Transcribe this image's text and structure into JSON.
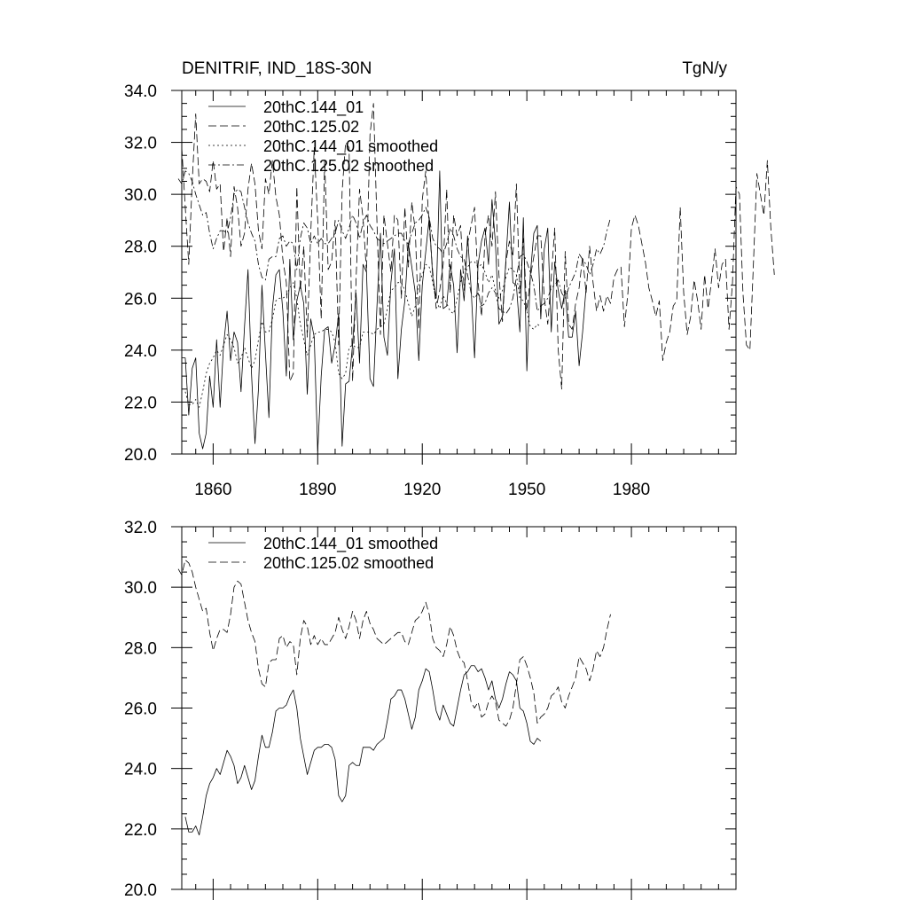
{
  "chart_data": [
    {
      "type": "line",
      "title": "DENITRIF, IND_18S-30N",
      "units": "TgN/y",
      "xlim": [
        1851,
        2010
      ],
      "ylim": [
        20.0,
        34.0
      ],
      "xticks": [
        1860,
        1890,
        1920,
        1950,
        1980
      ],
      "yticks": [
        "20.0",
        "22.0",
        "24.0",
        "26.0",
        "28.0",
        "30.0",
        "32.0",
        "34.0"
      ],
      "legend": "top-left",
      "series": [
        {
          "name": "20thC.144_01",
          "dash": "solid",
          "x_start": 1851,
          "values": [
            23.7,
            23.7,
            21.5,
            23.3,
            23.7,
            20.8,
            20.2,
            20.8,
            23.0,
            21.8,
            24.4,
            21.8,
            24.2,
            25.5,
            23.6,
            24.7,
            24.3,
            22.4,
            24.9,
            27.1,
            23.1,
            20.4,
            22.5,
            26.5,
            23.9,
            21.4,
            25.6,
            26.9,
            27.1,
            25.5,
            23.0,
            27.5,
            24.4,
            25.9,
            26.5,
            25.8,
            22.3,
            25.2,
            24.5,
            20.1,
            23.0,
            24.8,
            24.9,
            23.5,
            24.2,
            25.4,
            20.3,
            22.7,
            22.8,
            24.2,
            26.2,
            23.5,
            27.3,
            27.0,
            22.9,
            22.6,
            25.7,
            28.5,
            24.5,
            23.8,
            26.6,
            27.9,
            22.9,
            24.8,
            25.9,
            28.1,
            27.2,
            26.2,
            23.6,
            26.5,
            27.8,
            29.1,
            26.8,
            26.0,
            30.9,
            25.6,
            25.7,
            27.3,
            26.5,
            23.9,
            27.1,
            25.9,
            28.4,
            26.4,
            23.7,
            27.3,
            28.2,
            28.7,
            27.3,
            29.8,
            28.1,
            25.0,
            25.3,
            27.5,
            29.7,
            26.6,
            26.5,
            24.7,
            29.1,
            23.2,
            26.9,
            28.5,
            28.8,
            25.2,
            27.9,
            28.7,
            24.7,
            27.4,
            26.3,
            25.6,
            26.3,
            24.5,
            24.5,
            25.5,
            23.4,
            24.7,
            26.4
          ],
          "stroke": "#000000"
        },
        {
          "name": "20thC.125.02",
          "dash": "long-dash",
          "x_start": 1851,
          "values": [
            31.8,
            29.5,
            27.3,
            30.5,
            33.1,
            30.4,
            30.6,
            30.5,
            30.1,
            31.3,
            30.2,
            30.4,
            27.8,
            29.1,
            27.6,
            30.3,
            29.5,
            28.0,
            28.5,
            30.2,
            31.2,
            30.4,
            28.6,
            27.9,
            30.6,
            30.0,
            31.3,
            29.9,
            29.2,
            27.5,
            26.6,
            22.8,
            23.1,
            30.3,
            26.3,
            28.0,
            24.5,
            28.5,
            31.8,
            29.0,
            25.2,
            31.3,
            27.1,
            27.4,
            29.0,
            24.2,
            30.1,
            32.0,
            31.8,
            22.8,
            26.7,
            30.2,
            29.1,
            27.0,
            32.3,
            33.5,
            28.9,
            24.6,
            29.2,
            28.1,
            27.0,
            29.2,
            29.0,
            26.0,
            29.5,
            27.2,
            29.7,
            28.6,
            24.8,
            29.8,
            30.9,
            28.8,
            27.0,
            25.6,
            26.3,
            27.3,
            30.2,
            26.2,
            29.2,
            28.4,
            28.8,
            26.3,
            28.1,
            28.8,
            29.5,
            26.6,
            25.3,
            28.4,
            29.2,
            28.0,
            30.1,
            26.9,
            25.1,
            27.4,
            28.2,
            27.6,
            30.4,
            26.2,
            28.3,
            25.5,
            26.8,
            27.6,
            28.4,
            28.4,
            26.0,
            25.0,
            26.8,
            28.7,
            24.0,
            22.5,
            27.8,
            25.0,
            24.8,
            25.8,
            26.4,
            27.6,
            26.2,
            28.0,
            26.6,
            25.5,
            26.1,
            25.5,
            26.1,
            25.8,
            26.8,
            27.1,
            27.2,
            24.9,
            26.2,
            28.7,
            29.2,
            28.8,
            28.1,
            27.4,
            26.4,
            25.9,
            25.3,
            25.9,
            23.6,
            24.3,
            24.7,
            25.7,
            25.9,
            29.5,
            26.2,
            24.6,
            25.3,
            26.7,
            25.9,
            24.8,
            26.9,
            25.6,
            26.7,
            27.9,
            26.4,
            27.3,
            27.5,
            24.8,
            26.6,
            30.3,
            30.0,
            26.2,
            24.2,
            24.0,
            27.3,
            30.8,
            30.0,
            29.2,
            31.3,
            28.7,
            26.9
          ]
        }
      ]
    },
    {
      "type": "line",
      "xlim": [
        1851,
        2010
      ],
      "ylim": [
        20.0,
        32.0
      ],
      "yticks": [
        "20.0",
        "22.0",
        "24.0",
        "26.0",
        "28.0",
        "30.0",
        "32.0"
      ],
      "legend": "top-left",
      "series": [
        {
          "name": "20thC.144_01 smoothed",
          "dash": "solid",
          "x_start": 1852,
          "values": [
            22.4,
            21.9,
            21.9,
            22.1,
            21.8,
            22.4,
            23.1,
            23.5,
            23.7,
            24.0,
            23.8,
            24.2,
            24.6,
            24.4,
            24.1,
            23.5,
            23.7,
            24.1,
            23.7,
            23.3,
            23.6,
            24.4,
            25.1,
            24.7,
            24.7,
            25.2,
            25.9,
            26.0,
            26.0,
            26.1,
            26.4,
            26.6,
            26.0,
            25.0,
            24.4,
            23.8,
            24.2,
            24.6,
            24.7,
            24.7,
            24.8,
            24.8,
            24.7,
            24.3,
            23.1,
            22.9,
            23.1,
            24.1,
            24.2,
            24.1,
            24.1,
            24.7,
            24.7,
            24.7,
            24.6,
            24.8,
            24.9,
            25.0,
            25.6,
            26.3,
            26.4,
            26.6,
            26.6,
            26.3,
            25.8,
            25.3,
            25.7,
            26.6,
            26.9,
            27.3,
            27.2,
            26.6,
            25.9,
            25.6,
            26.1,
            25.8,
            25.5,
            25.4,
            26.0,
            26.6,
            27.1,
            27.2,
            27.4,
            27.4,
            27.2,
            27.3,
            27.0,
            26.6,
            26.9,
            26.3,
            26.0,
            26.3,
            26.8,
            27.2,
            27.1,
            26.9,
            26.0,
            25.9,
            25.5,
            24.9,
            24.8,
            25.0,
            24.9
          ],
          "stroke": "#000000"
        },
        {
          "name": "20thC.125.02 smoothed",
          "dash": "long-dash",
          "x_start": 1850,
          "values": [
            30.6,
            30.4,
            30.9,
            30.8,
            30.5,
            30.0,
            29.6,
            29.2,
            29.3,
            28.5,
            27.9,
            28.3,
            28.6,
            28.6,
            28.5,
            29.1,
            30.0,
            30.2,
            30.1,
            29.5,
            28.9,
            28.5,
            28.2,
            27.3,
            26.8,
            26.7,
            27.5,
            27.6,
            27.6,
            28.3,
            28.4,
            28.0,
            28.2,
            28.1,
            27.1,
            28.3,
            28.9,
            28.7,
            28.1,
            28.4,
            28.1,
            28.3,
            28.1,
            28.1,
            28.3,
            28.5,
            29.0,
            28.6,
            28.3,
            28.7,
            29.2,
            28.9,
            28.3,
            28.9,
            29.2,
            28.8,
            28.6,
            28.3,
            28.2,
            28.1,
            28.2,
            28.3,
            28.4,
            28.5,
            28.5,
            28.2,
            28.1,
            28.5,
            28.9,
            29.0,
            29.2,
            29.5,
            29.1,
            28.3,
            28.0,
            27.9,
            27.7,
            28.1,
            28.7,
            28.4,
            27.9,
            27.6,
            27.5,
            26.9,
            26.2,
            26.0,
            26.2,
            25.7,
            25.8,
            26.2,
            26.4,
            26.2,
            25.6,
            25.5,
            25.4,
            25.6,
            26.0,
            26.8,
            27.6,
            27.7,
            27.4,
            27.0,
            26.5,
            25.5,
            25.7,
            25.8,
            26.0,
            26.4,
            26.5,
            26.7,
            26.2,
            26.0,
            26.4,
            26.7,
            27.0,
            27.7,
            27.5,
            27.3,
            26.9,
            27.3,
            27.9,
            27.7,
            28.0,
            28.6,
            29.1
          ],
          "stroke": "#000000"
        }
      ]
    }
  ]
}
